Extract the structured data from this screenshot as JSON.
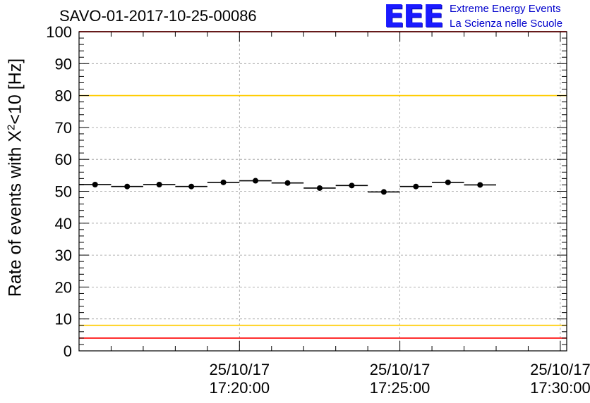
{
  "chart_data": {
    "type": "scatter",
    "run_title": "SAVO-01-2017-10-25-00086",
    "ylabel": {
      "prefix": "Rate of events with X",
      "sup": "2",
      "suffix": "<10 [Hz]"
    },
    "ylim": [
      0,
      100
    ],
    "yticks": [
      0,
      10,
      20,
      30,
      40,
      50,
      60,
      70,
      80,
      90,
      100
    ],
    "xlim_minutes": [
      15.0,
      30.2
    ],
    "xticks": [
      {
        "minute": 20,
        "date": "25/10/17",
        "time": "17:20:00"
      },
      {
        "minute": 25,
        "date": "25/10/17",
        "time": "17:25:00"
      },
      {
        "minute": 30,
        "date": "25/10/17",
        "time": "17:30:00"
      }
    ],
    "bin_width_minutes": 1.0,
    "points": [
      {
        "x": 15.5,
        "y": 52.1
      },
      {
        "x": 16.5,
        "y": 51.5
      },
      {
        "x": 17.5,
        "y": 52.1
      },
      {
        "x": 18.5,
        "y": 51.5
      },
      {
        "x": 19.5,
        "y": 52.8
      },
      {
        "x": 20.5,
        "y": 53.3
      },
      {
        "x": 21.5,
        "y": 52.6
      },
      {
        "x": 22.5,
        "y": 51.0
      },
      {
        "x": 23.5,
        "y": 51.8
      },
      {
        "x": 24.5,
        "y": 49.8
      },
      {
        "x": 25.5,
        "y": 51.5
      },
      {
        "x": 26.5,
        "y": 52.8
      },
      {
        "x": 27.5,
        "y": 52.0
      }
    ],
    "reference_lines": [
      {
        "name": "upper-red-limit",
        "y": 100,
        "color": "#ff0000"
      },
      {
        "name": "upper-yellow-limit",
        "y": 80,
        "color": "#ffcc00"
      },
      {
        "name": "lower-yellow-limit",
        "y": 8,
        "color": "#ffcc00"
      },
      {
        "name": "lower-red-limit",
        "y": 4,
        "color": "#ff0000"
      }
    ],
    "grid": true
  },
  "logo": {
    "mark": "EEE",
    "line1": "Extreme Energy Events",
    "line2": "La Scienza nelle Scuole"
  }
}
